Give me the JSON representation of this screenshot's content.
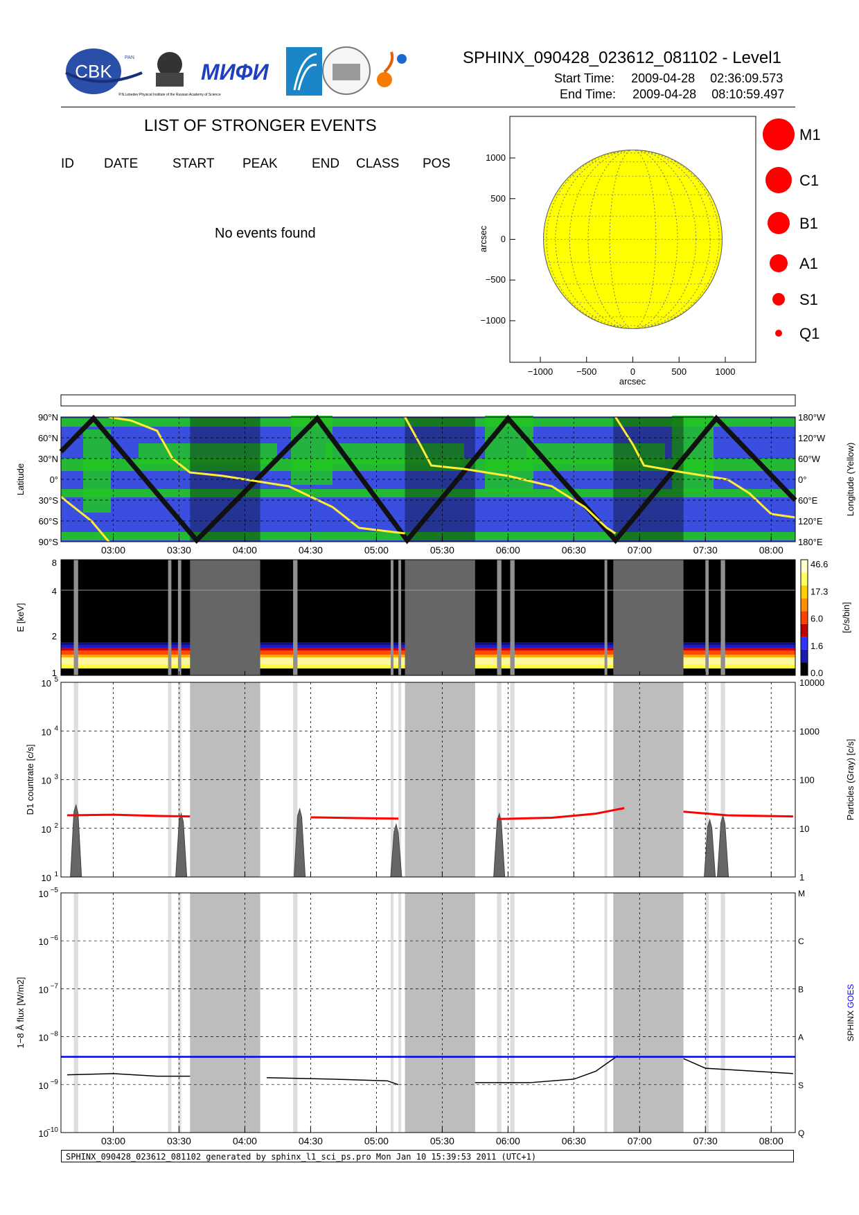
{
  "header": {
    "title": "SPHINX_090428_023612_081102 - Level1",
    "start_label": "Start Time:",
    "start_date": "2009-04-28",
    "start_time": "02:36:09.573",
    "end_label": "End Time:",
    "end_date": "2009-04-28",
    "end_time": "08:10:59.497",
    "logo_text": "CBK",
    "logo_sub": "PAN",
    "logo2_caption": "P.N.Lebedev Physical Institute of the Russian Academy of Science",
    "logo3_text": "MИФИ"
  },
  "events": {
    "title": "LIST OF STRONGER EVENTS",
    "columns": [
      "ID",
      "DATE",
      "START",
      "PEAK",
      "END",
      "CLASS",
      "POS"
    ],
    "empty_message": "No events found"
  },
  "sun_map": {
    "xlabel": "arcsec",
    "ylabel": "arcsec",
    "xticks": [
      "−1000",
      "−500",
      "0",
      "500",
      "1000"
    ],
    "yticks": [
      "1000",
      "500",
      "0",
      "−500",
      "−1000"
    ],
    "disk_color": "#ffff00",
    "legend": [
      "M1",
      "C1",
      "B1",
      "A1",
      "S1",
      "Q1"
    ],
    "legend_color": "#ff0000"
  },
  "time_axis": {
    "ticks": [
      "03:00",
      "03:30",
      "04:00",
      "04:30",
      "05:00",
      "05:30",
      "06:00",
      "06:30",
      "07:00",
      "07:30",
      "08:00"
    ],
    "start": "02:36:09",
    "end": "08:10:59"
  },
  "orbit_panel": {
    "ylabel_left": "Latitude",
    "ylabel_right": "Longitude (Yellow)",
    "lat_ticks": [
      "90°N",
      "60°N",
      "30°N",
      "0°",
      "30°S",
      "60°S",
      "90°S"
    ],
    "lon_ticks": [
      "180°W",
      "120°W",
      "60°W",
      "0°",
      "60°E",
      "120°E",
      "180°E"
    ],
    "colors": {
      "ocean": "#3a4fe0",
      "land": "#22c422",
      "shadow_ocean": "#2a34a8",
      "shadow_land": "#1a8f1a",
      "track": "#111111",
      "longitude": "#ffee33"
    }
  },
  "spectrogram": {
    "ylabel": "E [keV]",
    "yticks": [
      "8",
      "4",
      "2",
      "1"
    ],
    "cbar_label": "[c/s/bin]",
    "cbar_ticks": [
      "46.6",
      "17.3",
      "6.0",
      "1.6",
      "0.0"
    ]
  },
  "counts_panel": {
    "ylabel_left": "D1 countrate [c/s]",
    "ylabel_right": "Particles (Gray) [c/s]",
    "left_ticks": [
      "10",
      "10",
      "10",
      "10",
      "10"
    ],
    "left_exps": [
      "5",
      "4",
      "3",
      "2",
      "1"
    ],
    "right_ticks": [
      "10000",
      "1000",
      "100",
      "10",
      "1"
    ]
  },
  "flux_panel": {
    "ylabel_left": "1−8 Å flux [W/m",
    "ylabel_sup": "2",
    "ylabel_end": "]",
    "left_ticks": [
      "10",
      "10",
      "10",
      "10",
      "10",
      "10"
    ],
    "left_exps": [
      "−5",
      "−6",
      "−7",
      "−8",
      "−9",
      "−10"
    ],
    "class_ticks": [
      "M",
      "C",
      "B",
      "A",
      "S",
      "Q"
    ],
    "legend": [
      "SPHINX",
      "GOES"
    ],
    "legend_colors": [
      "#000000",
      "#0000ff"
    ]
  },
  "footer": {
    "text": "SPHINX_090428_023612_081102 generated by sphinx_l1_sci_ps.pro Mon Jan 10 15:39:53 2011 (UTC+1)"
  },
  "chart_data": [
    {
      "type": "line",
      "title": "",
      "xlabel": "",
      "ylabel": "D1 countrate [c/s]",
      "y_scale": "log",
      "ylim": [
        10,
        100000
      ],
      "x": [
        "02:39",
        "03:00",
        "03:20",
        "03:35",
        "04:30",
        "05:00",
        "05:10",
        "05:55",
        "06:20",
        "06:40",
        "06:53",
        "07:20",
        "07:40",
        "08:10"
      ],
      "series": [
        {
          "name": "D1 countrate",
          "color": "#ff0000",
          "values": [
            185,
            190,
            180,
            175,
            168,
            160,
            158,
            155,
            165,
            200,
            260,
            220,
            185,
            175
          ]
        }
      ],
      "secondary_axis": {
        "label": "Particles (Gray) [c/s]",
        "ylim": [
          1,
          10000
        ],
        "peaks": [
          {
            "t": "02:43",
            "value": 30
          },
          {
            "t": "03:31",
            "value": 20
          },
          {
            "t": "04:25",
            "value": 25
          },
          {
            "t": "05:09",
            "value": 12
          },
          {
            "t": "05:56",
            "value": 20
          },
          {
            "t": "07:32",
            "value": 15
          },
          {
            "t": "07:38",
            "value": 18
          }
        ]
      },
      "data_gaps": [
        [
          "03:35",
          "04:07"
        ],
        [
          "05:13",
          "05:45"
        ],
        [
          "06:48",
          "07:20"
        ]
      ]
    },
    {
      "type": "line",
      "title": "",
      "xlabel": "",
      "ylabel": "1−8 Å flux [W/m2]",
      "y_scale": "log",
      "ylim": [
        1e-10,
        1e-05
      ],
      "x": [
        "02:39",
        "03:00",
        "03:20",
        "03:35",
        "04:10",
        "04:40",
        "05:05",
        "05:10",
        "05:45",
        "06:10",
        "06:30",
        "06:40",
        "06:50",
        "07:20",
        "07:30",
        "08:10"
      ],
      "series": [
        {
          "name": "SPHINX",
          "color": "#000000",
          "values": [
            1.6e-09,
            1.7e-09,
            1.5e-09,
            1.5e-09,
            1.4e-09,
            1.3e-09,
            1.2e-09,
            1e-09,
            1.1e-09,
            1.1e-09,
            1.3e-09,
            1.9e-09,
            4e-09,
            3.5e-09,
            2.2e-09,
            1.7e-09
          ]
        },
        {
          "name": "GOES",
          "color": "#0000ff",
          "values": [
            3.8e-09,
            3.8e-09,
            3.8e-09,
            3.8e-09,
            3.8e-09,
            3.8e-09,
            3.8e-09,
            3.8e-09,
            3.8e-09,
            3.8e-09,
            3.8e-09,
            3.8e-09,
            3.8e-09,
            3.8e-09,
            3.8e-09,
            3.8e-09
          ]
        }
      ],
      "data_gaps": [
        [
          "03:35",
          "04:07"
        ],
        [
          "05:13",
          "05:45"
        ],
        [
          "06:48",
          "07:20"
        ]
      ]
    }
  ]
}
